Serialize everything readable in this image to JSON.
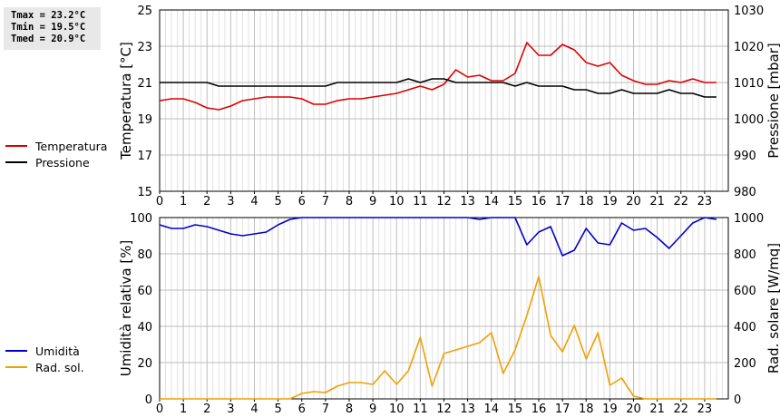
{
  "stats": {
    "tmax": "Tmax = 23.2°C",
    "tmin": "Tmin = 19.5°C",
    "tmed": "Tmed = 20.9°C"
  },
  "legend_top": [
    {
      "label": "Temperatura",
      "color": "#dd0000"
    },
    {
      "label": "Pressione",
      "color": "#000000"
    }
  ],
  "legend_bottom": [
    {
      "label": "Umidità",
      "color": "#0000cc"
    },
    {
      "label": "Rad. sol.",
      "color": "#f0a000"
    }
  ],
  "chart_data": [
    {
      "type": "line",
      "xlim": [
        0,
        24
      ],
      "x_ticks": [
        "0",
        "1",
        "2",
        "3",
        "4",
        "5",
        "6",
        "7",
        "8",
        "9",
        "10",
        "11",
        "12",
        "13",
        "14",
        "15",
        "16",
        "17",
        "18",
        "19",
        "20",
        "21",
        "22",
        "23"
      ],
      "ylabel_left": "Temperatura [°C]",
      "ylim_left": [
        15,
        25
      ],
      "y_ticks_left": [
        "15",
        "17",
        "19",
        "21",
        "23",
        "25"
      ],
      "ylabel_right": "Pressione [mbar]",
      "ylim_right": [
        980,
        1030
      ],
      "y_ticks_right": [
        "980",
        "990",
        "1000",
        "1010",
        "1020",
        "1030"
      ],
      "grid": true,
      "series": [
        {
          "name": "Temperatura",
          "axis": "left",
          "color": "#dd0000",
          "x": [
            0,
            0.5,
            1,
            1.5,
            2,
            2.5,
            3,
            3.5,
            4,
            4.5,
            5,
            5.5,
            6,
            6.5,
            7,
            7.5,
            8,
            8.5,
            9,
            9.5,
            10,
            10.5,
            11,
            11.5,
            12,
            12.5,
            13,
            13.5,
            14,
            14.5,
            15,
            15.5,
            16,
            16.5,
            17,
            17.5,
            18,
            18.5,
            19,
            19.5,
            20,
            20.5,
            21,
            21.5,
            22,
            22.5,
            23,
            23.5
          ],
          "values": [
            20.0,
            20.1,
            20.1,
            19.9,
            19.6,
            19.5,
            19.7,
            20.0,
            20.1,
            20.2,
            20.2,
            20.2,
            20.1,
            19.8,
            19.8,
            20.0,
            20.1,
            20.1,
            20.2,
            20.3,
            20.4,
            20.6,
            20.8,
            20.6,
            20.9,
            21.7,
            21.3,
            21.4,
            21.1,
            21.1,
            21.5,
            23.2,
            22.5,
            22.5,
            23.1,
            22.8,
            22.1,
            21.9,
            22.1,
            21.4,
            21.1,
            20.9,
            20.9,
            21.1,
            21.0,
            21.2,
            21.0,
            21.0
          ]
        },
        {
          "name": "Pressione",
          "axis": "right",
          "color": "#000000",
          "x": [
            0,
            0.5,
            1,
            1.5,
            2,
            2.5,
            3,
            3.5,
            4,
            4.5,
            5,
            5.5,
            6,
            6.5,
            7,
            7.5,
            8,
            8.5,
            9,
            9.5,
            10,
            10.5,
            11,
            11.5,
            12,
            12.5,
            13,
            13.5,
            14,
            14.5,
            15,
            15.5,
            16,
            16.5,
            17,
            17.5,
            18,
            18.5,
            19,
            19.5,
            20,
            20.5,
            21,
            21.5,
            22,
            22.5,
            23,
            23.5
          ],
          "values": [
            1010,
            1010,
            1010,
            1010,
            1010,
            1009,
            1009,
            1009,
            1009,
            1009,
            1009,
            1009,
            1009,
            1009,
            1009,
            1010,
            1010,
            1010,
            1010,
            1010,
            1010,
            1011,
            1010,
            1011,
            1011,
            1010,
            1010,
            1010,
            1010,
            1010,
            1009,
            1010,
            1009,
            1009,
            1009,
            1008,
            1008,
            1007,
            1007,
            1008,
            1007,
            1007,
            1007,
            1008,
            1007,
            1007,
            1006,
            1006
          ]
        }
      ]
    },
    {
      "type": "line",
      "xlim": [
        0,
        24
      ],
      "x_ticks": [
        "0",
        "1",
        "2",
        "3",
        "4",
        "5",
        "6",
        "7",
        "8",
        "9",
        "10",
        "11",
        "12",
        "13",
        "14",
        "15",
        "16",
        "17",
        "18",
        "19",
        "20",
        "21",
        "22",
        "23"
      ],
      "ylabel_left": "Umidità relativa [%]",
      "ylim_left": [
        0,
        100
      ],
      "y_ticks_left": [
        "0",
        "20",
        "40",
        "60",
        "80",
        "100"
      ],
      "ylabel_right": "Rad. solare [W/mq]",
      "ylim_right": [
        0,
        1000
      ],
      "y_ticks_right": [
        "0",
        "200",
        "400",
        "600",
        "800",
        "1000"
      ],
      "grid": true,
      "series": [
        {
          "name": "Umidità",
          "axis": "left",
          "color": "#0000cc",
          "x": [
            0,
            0.5,
            1,
            1.5,
            2,
            2.5,
            3,
            3.5,
            4,
            4.5,
            5,
            5.5,
            6,
            6.5,
            7,
            7.5,
            8,
            8.5,
            9,
            9.5,
            10,
            10.5,
            11,
            11.5,
            12,
            12.5,
            13,
            13.5,
            14,
            14.5,
            15,
            15.5,
            16,
            16.5,
            17,
            17.5,
            18,
            18.5,
            19,
            19.5,
            20,
            20.5,
            21,
            21.5,
            22,
            22.5,
            23,
            23.5
          ],
          "values": [
            96,
            94,
            94,
            96,
            95,
            93,
            91,
            90,
            91,
            92,
            96,
            99,
            100,
            100,
            100,
            100,
            100,
            100,
            100,
            100,
            100,
            100,
            100,
            100,
            100,
            100,
            100,
            99,
            100,
            100,
            100,
            85,
            92,
            95,
            79,
            82,
            94,
            86,
            85,
            97,
            93,
            94,
            89,
            83,
            90,
            97,
            100,
            99
          ]
        },
        {
          "name": "Rad. sol.",
          "axis": "right",
          "color": "#f0a000",
          "x": [
            0,
            0.5,
            1,
            1.5,
            2,
            2.5,
            3,
            3.5,
            4,
            4.5,
            5,
            5.5,
            6,
            6.5,
            7,
            7.5,
            8,
            8.5,
            9,
            9.5,
            10,
            10.5,
            11,
            11.5,
            12,
            12.5,
            13,
            13.5,
            14,
            14.5,
            15,
            15.5,
            16,
            16.5,
            17,
            17.5,
            18,
            18.5,
            19,
            19.5,
            20,
            20.5,
            21,
            21.5,
            22,
            22.5,
            23,
            23.5
          ],
          "values": [
            0,
            0,
            0,
            0,
            0,
            0,
            0,
            0,
            0,
            0,
            0,
            0,
            30,
            40,
            35,
            70,
            90,
            90,
            80,
            155,
            80,
            155,
            340,
            70,
            250,
            270,
            290,
            310,
            365,
            140,
            270,
            460,
            675,
            350,
            260,
            405,
            220,
            365,
            75,
            115,
            15,
            0,
            0,
            0,
            0,
            0,
            0,
            0
          ]
        }
      ]
    }
  ]
}
